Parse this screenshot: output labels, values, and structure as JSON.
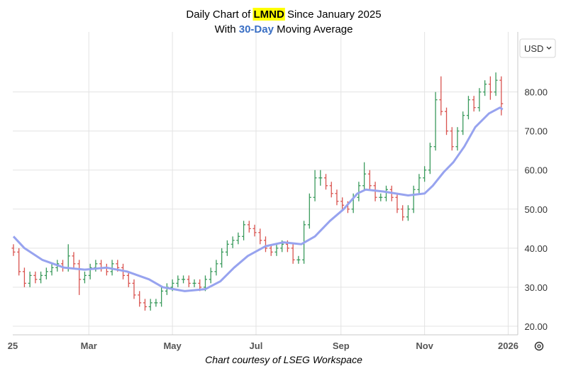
{
  "chart_data": {
    "type": "ohlc",
    "title": {
      "prefix": "Daily Chart of ",
      "ticker": "LMND",
      "suffix": " Since January 2025"
    },
    "subtitle": {
      "prefix": "With ",
      "period": "30-Day",
      "suffix": " Moving Average"
    },
    "source": "Chart courtesy of LSEG Workspace",
    "currency": "USD",
    "xlim": [
      3.5,
      372
    ],
    "xticks": [
      {
        "value": 0,
        "label": "25"
      },
      {
        "value": 59,
        "label": "Mar"
      },
      {
        "value": 120,
        "label": "May"
      },
      {
        "value": 181,
        "label": "Jul"
      },
      {
        "value": 243,
        "label": "Sep"
      },
      {
        "value": 304,
        "label": "Nov"
      },
      {
        "value": 365,
        "label": "2026"
      }
    ],
    "ylim": [
      17.8,
      97.2
    ],
    "yticks": [
      {
        "value": 20,
        "label": "20.00"
      },
      {
        "value": 30,
        "label": "30.00"
      },
      {
        "value": 40,
        "label": "40.00"
      },
      {
        "value": 50,
        "label": "50.00"
      },
      {
        "value": 60,
        "label": "60.00"
      },
      {
        "value": 70,
        "label": "70.00"
      },
      {
        "value": 80,
        "label": "80.00"
      }
    ],
    "grid": true,
    "ohlc": {
      "up_color": "#3a9a5c",
      "down_color": "#d9534f",
      "x": [
        4,
        8,
        12,
        16,
        20,
        24,
        28,
        32,
        36,
        40,
        44,
        48,
        52,
        56,
        60,
        64,
        68,
        72,
        76,
        80,
        84,
        88,
        92,
        96,
        100,
        104,
        108,
        112,
        116,
        120,
        124,
        128,
        132,
        136,
        140,
        144,
        148,
        152,
        156,
        160,
        164,
        168,
        172,
        176,
        180,
        184,
        188,
        192,
        196,
        200,
        204,
        208,
        212,
        216,
        220,
        224,
        228,
        232,
        236,
        240,
        244,
        248,
        252,
        256,
        260,
        264,
        268,
        272,
        276,
        280,
        284,
        288,
        292,
        296,
        300,
        304,
        308,
        312,
        316,
        320,
        324,
        328,
        332,
        336,
        340,
        344,
        348,
        352,
        356,
        360
      ],
      "open": [
        40,
        39,
        34,
        31,
        33,
        32,
        33,
        34,
        35,
        36,
        35,
        38,
        36,
        32,
        33,
        35,
        36,
        35,
        34,
        36,
        35,
        33,
        31,
        28,
        26,
        25,
        26,
        26,
        29,
        30,
        31,
        32,
        32,
        31,
        31,
        30,
        32,
        34,
        36,
        39,
        41,
        42,
        43,
        46,
        45,
        44,
        42,
        40,
        39,
        40,
        41,
        40,
        37,
        37,
        46,
        53,
        58,
        58,
        56,
        54,
        52,
        51,
        50,
        53,
        56,
        59,
        56,
        53,
        53,
        55,
        53,
        50,
        48,
        50,
        55,
        58,
        60,
        66,
        78,
        75,
        70,
        66,
        70,
        74,
        78,
        76,
        80,
        82,
        80,
        83
      ],
      "high": [
        41,
        40,
        35,
        34,
        34,
        34,
        35,
        36,
        37,
        37,
        41,
        39,
        37,
        34,
        36,
        37,
        37,
        36,
        37,
        37,
        36,
        34,
        32,
        29,
        27,
        27,
        27,
        30,
        31,
        32,
        33,
        33,
        33,
        32,
        32,
        33,
        35,
        37,
        40,
        42,
        43,
        44,
        47,
        47,
        46,
        45,
        43,
        41,
        41,
        42,
        42,
        41,
        38,
        47,
        54,
        60,
        60,
        59,
        57,
        55,
        53,
        52,
        54,
        57,
        62,
        60,
        57,
        54,
        56,
        56,
        54,
        51,
        51,
        56,
        59,
        61,
        67,
        80,
        84,
        76,
        71,
        71,
        75,
        79,
        79,
        81,
        83,
        84,
        85,
        84
      ],
      "low": [
        38,
        33,
        30,
        30,
        31,
        31,
        32,
        33,
        34,
        34,
        34,
        35,
        28,
        31,
        32,
        34,
        34,
        33,
        33,
        34,
        32,
        30,
        27,
        25,
        24,
        24,
        25,
        25,
        28,
        29,
        30,
        31,
        30,
        30,
        29,
        29,
        31,
        33,
        35,
        38,
        40,
        41,
        42,
        44,
        43,
        41,
        39,
        38,
        38,
        39,
        39,
        36,
        36,
        36,
        45,
        52,
        56,
        55,
        53,
        51,
        50,
        49,
        49,
        52,
        55,
        55,
        52,
        52,
        52,
        52,
        49,
        47,
        47,
        49,
        54,
        57,
        59,
        65,
        74,
        69,
        65,
        65,
        69,
        73,
        75,
        75,
        79,
        78,
        79,
        74
      ],
      "close": [
        39,
        34,
        31,
        33,
        32,
        33,
        34,
        35,
        36,
        35,
        38,
        36,
        32,
        33,
        35,
        36,
        35,
        34,
        36,
        35,
        33,
        31,
        28,
        26,
        25,
        26,
        26,
        29,
        30,
        31,
        32,
        32,
        31,
        31,
        30,
        32,
        34,
        36,
        39,
        41,
        42,
        43,
        46,
        45,
        44,
        42,
        40,
        39,
        40,
        41,
        40,
        37,
        37,
        46,
        53,
        58,
        58,
        56,
        54,
        52,
        51,
        50,
        53,
        56,
        59,
        56,
        53,
        53,
        55,
        53,
        50,
        48,
        50,
        55,
        58,
        60,
        66,
        78,
        75,
        70,
        66,
        70,
        74,
        78,
        76,
        80,
        82,
        80,
        83,
        77
      ]
    },
    "moving_average": {
      "color": "#97a3ef",
      "x": [
        4,
        12,
        25,
        41,
        56,
        72,
        87,
        103,
        113,
        129,
        144,
        155,
        165,
        175,
        188,
        201,
        214,
        224,
        235,
        245,
        255,
        261,
        274,
        292,
        304,
        310,
        318,
        325,
        333,
        341,
        351,
        359,
        361
      ],
      "values": [
        43,
        40,
        37,
        35,
        34.5,
        35,
        34,
        32,
        30,
        29,
        29.5,
        31.5,
        35,
        38,
        40.5,
        41.5,
        41,
        43,
        47,
        50,
        54,
        55,
        54.5,
        53.5,
        54,
        56,
        59.5,
        62,
        66,
        71,
        74.5,
        76,
        75.5
      ]
    }
  }
}
